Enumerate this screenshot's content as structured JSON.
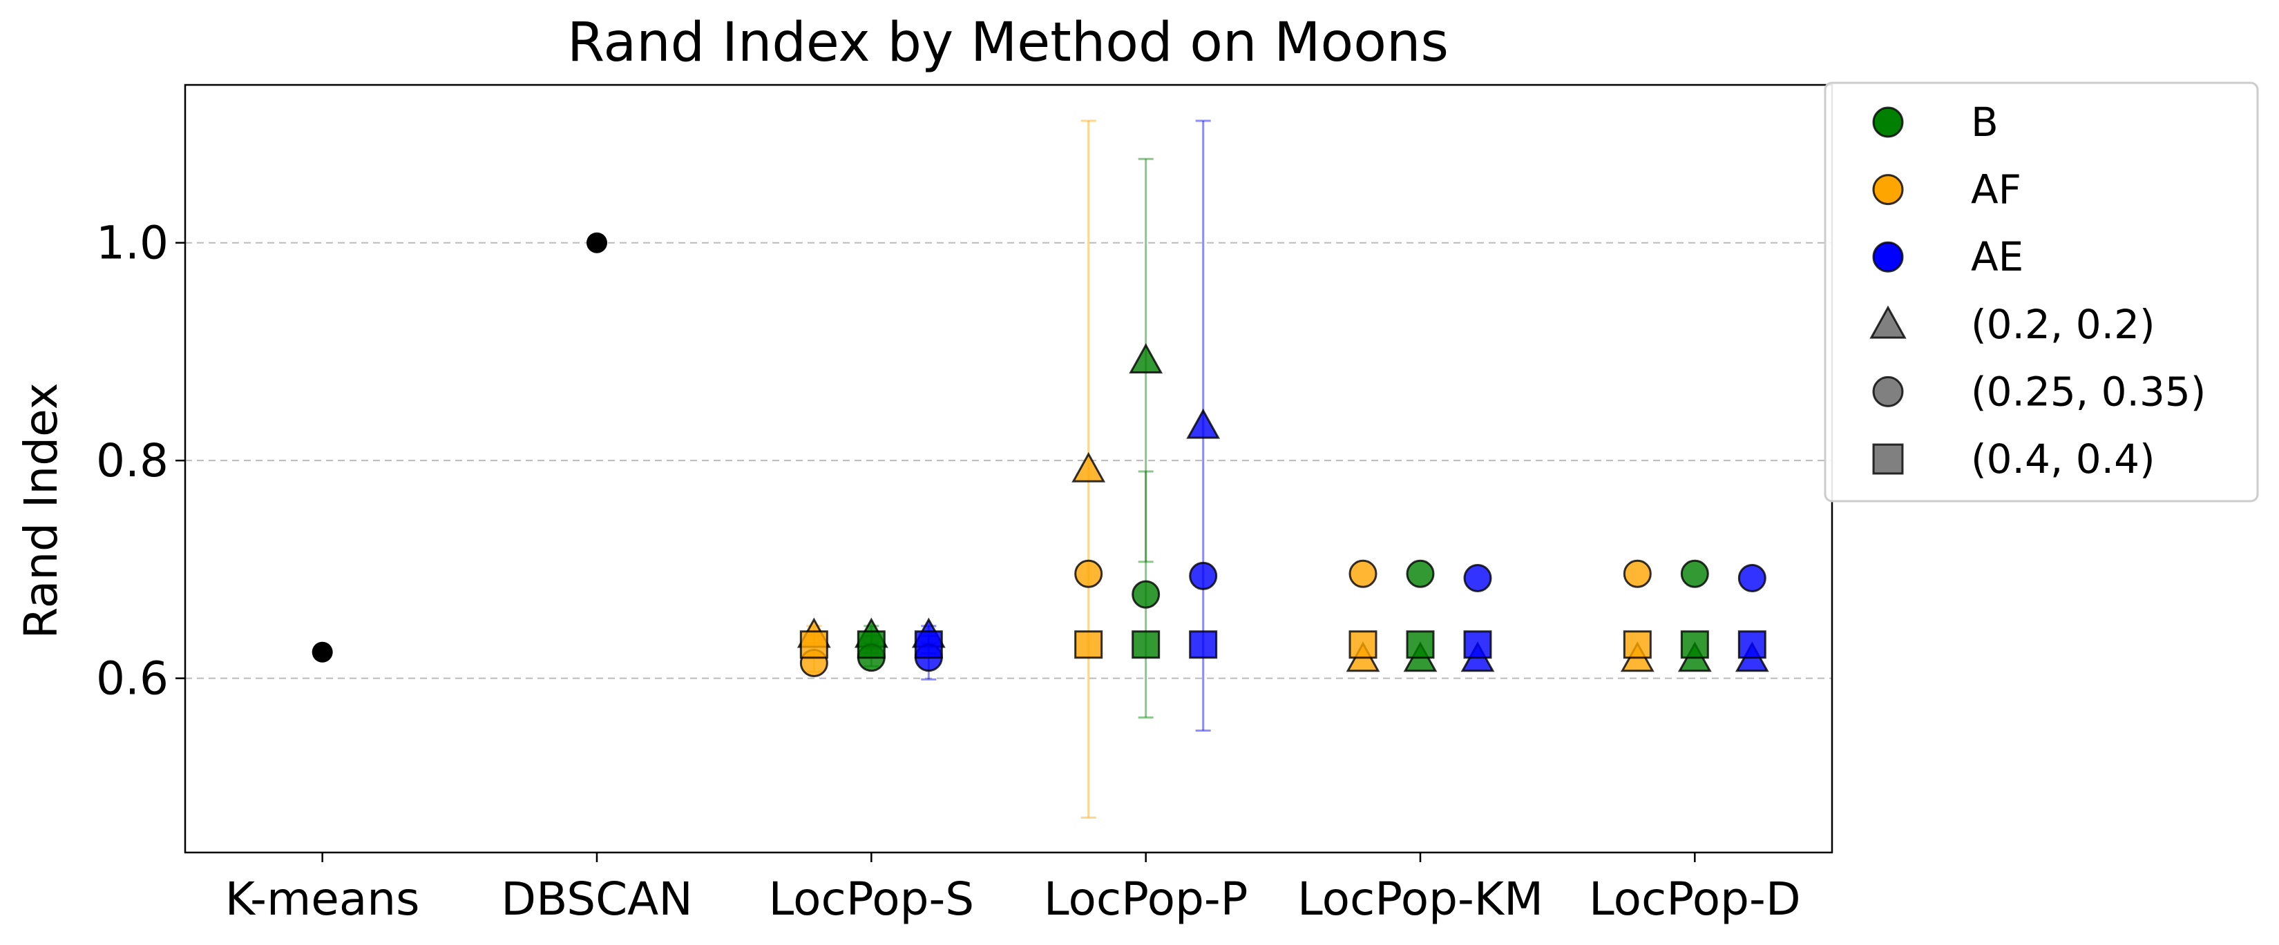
{
  "chart_data": {
    "type": "scatter",
    "title": "Rand Index by Method on Moons",
    "xlabel": "",
    "ylabel": "Rand Index",
    "categories": [
      "K-means",
      "DBSCAN",
      "LocPop-S",
      "LocPop-P",
      "LocPop-KM",
      "LocPop-D"
    ],
    "ylim": [
      0.44,
      1.145
    ],
    "yticks": [
      0.6,
      0.8,
      1.0
    ],
    "ytick_labels": [
      "0.6",
      "0.8",
      "1.0"
    ],
    "grid": "y dashed",
    "legend_position": "outside-right-top",
    "colors": {
      "B": "#008000",
      "AF": "#FFA500",
      "AE": "#0000FF",
      "baseline": "#000000",
      "legend_param": "#808080"
    },
    "legend": {
      "colors": [
        {
          "label": "B",
          "color": "#008000"
        },
        {
          "label": "AF",
          "color": "#FFA500"
        },
        {
          "label": "AE",
          "color": "#0000FF"
        }
      ],
      "params": [
        {
          "label": "(0.2, 0.2)",
          "marker": "triangle"
        },
        {
          "label": "(0.25, 0.35)",
          "marker": "circle"
        },
        {
          "label": "(0.4, 0.4)",
          "marker": "square"
        }
      ]
    },
    "baselines": [
      {
        "category": "K-means",
        "value": 0.624
      },
      {
        "category": "DBSCAN",
        "value": 1.0
      }
    ],
    "series": [
      {
        "category": "LocPop-S",
        "color": "AF",
        "marker": "triangle",
        "value": 0.64,
        "err": 0.008
      },
      {
        "category": "LocPop-S",
        "color": "AF",
        "marker": "circle",
        "value": 0.614,
        "err": 0.008
      },
      {
        "category": "LocPop-S",
        "color": "AF",
        "marker": "square",
        "value": 0.631,
        "err": 0.008
      },
      {
        "category": "LocPop-S",
        "color": "B",
        "marker": "triangle",
        "value": 0.64,
        "err": 0.008
      },
      {
        "category": "LocPop-S",
        "color": "B",
        "marker": "circle",
        "value": 0.619,
        "err": 0.008
      },
      {
        "category": "LocPop-S",
        "color": "B",
        "marker": "square",
        "value": 0.631,
        "err": 0.008
      },
      {
        "category": "LocPop-S",
        "color": "AE",
        "marker": "triangle",
        "value": 0.64,
        "err": 0.008
      },
      {
        "category": "LocPop-S",
        "color": "AE",
        "marker": "circle",
        "value": 0.619,
        "err": 0.02
      },
      {
        "category": "LocPop-S",
        "color": "AE",
        "marker": "square",
        "value": 0.631,
        "err": 0.008
      },
      {
        "category": "LocPop-P",
        "color": "AF",
        "marker": "triangle",
        "value": 0.792,
        "err": 0.32
      },
      {
        "category": "LocPop-P",
        "color": "AF",
        "marker": "circle",
        "value": 0.696,
        "err": 0.0
      },
      {
        "category": "LocPop-P",
        "color": "AF",
        "marker": "square",
        "value": 0.631,
        "err": 0.0
      },
      {
        "category": "LocPop-P",
        "color": "B",
        "marker": "triangle",
        "value": 0.892,
        "err": 0.185
      },
      {
        "category": "LocPop-P",
        "color": "B",
        "marker": "circle",
        "value": 0.677,
        "err": 0.113
      },
      {
        "category": "LocPop-P",
        "color": "B",
        "marker": "square",
        "value": 0.631,
        "err": 0.0
      },
      {
        "category": "LocPop-P",
        "color": "AE",
        "marker": "triangle",
        "value": 0.832,
        "err": 0.28
      },
      {
        "category": "LocPop-P",
        "color": "AE",
        "marker": "circle",
        "value": 0.694,
        "err": 0.0
      },
      {
        "category": "LocPop-P",
        "color": "AE",
        "marker": "square",
        "value": 0.631,
        "err": 0.0
      },
      {
        "category": "LocPop-KM",
        "color": "AF",
        "marker": "triangle",
        "value": 0.618,
        "err": 0.0
      },
      {
        "category": "LocPop-KM",
        "color": "AF",
        "marker": "circle",
        "value": 0.696,
        "err": 0.0
      },
      {
        "category": "LocPop-KM",
        "color": "AF",
        "marker": "square",
        "value": 0.631,
        "err": 0.0
      },
      {
        "category": "LocPop-KM",
        "color": "B",
        "marker": "triangle",
        "value": 0.618,
        "err": 0.0
      },
      {
        "category": "LocPop-KM",
        "color": "B",
        "marker": "circle",
        "value": 0.696,
        "err": 0.0
      },
      {
        "category": "LocPop-KM",
        "color": "B",
        "marker": "square",
        "value": 0.631,
        "err": 0.0
      },
      {
        "category": "LocPop-KM",
        "color": "AE",
        "marker": "triangle",
        "value": 0.618,
        "err": 0.0
      },
      {
        "category": "LocPop-KM",
        "color": "AE",
        "marker": "circle",
        "value": 0.692,
        "err": 0.0
      },
      {
        "category": "LocPop-KM",
        "color": "AE",
        "marker": "square",
        "value": 0.631,
        "err": 0.0
      },
      {
        "category": "LocPop-D",
        "color": "AF",
        "marker": "triangle",
        "value": 0.618,
        "err": 0.0
      },
      {
        "category": "LocPop-D",
        "color": "AF",
        "marker": "circle",
        "value": 0.696,
        "err": 0.0
      },
      {
        "category": "LocPop-D",
        "color": "AF",
        "marker": "square",
        "value": 0.631,
        "err": 0.0
      },
      {
        "category": "LocPop-D",
        "color": "B",
        "marker": "triangle",
        "value": 0.618,
        "err": 0.0
      },
      {
        "category": "LocPop-D",
        "color": "B",
        "marker": "circle",
        "value": 0.696,
        "err": 0.0
      },
      {
        "category": "LocPop-D",
        "color": "B",
        "marker": "square",
        "value": 0.631,
        "err": 0.0
      },
      {
        "category": "LocPop-D",
        "color": "AE",
        "marker": "triangle",
        "value": 0.618,
        "err": 0.0
      },
      {
        "category": "LocPop-D",
        "color": "AE",
        "marker": "circle",
        "value": 0.692,
        "err": 0.0
      },
      {
        "category": "LocPop-D",
        "color": "AE",
        "marker": "square",
        "value": 0.631,
        "err": 0.0
      }
    ]
  }
}
